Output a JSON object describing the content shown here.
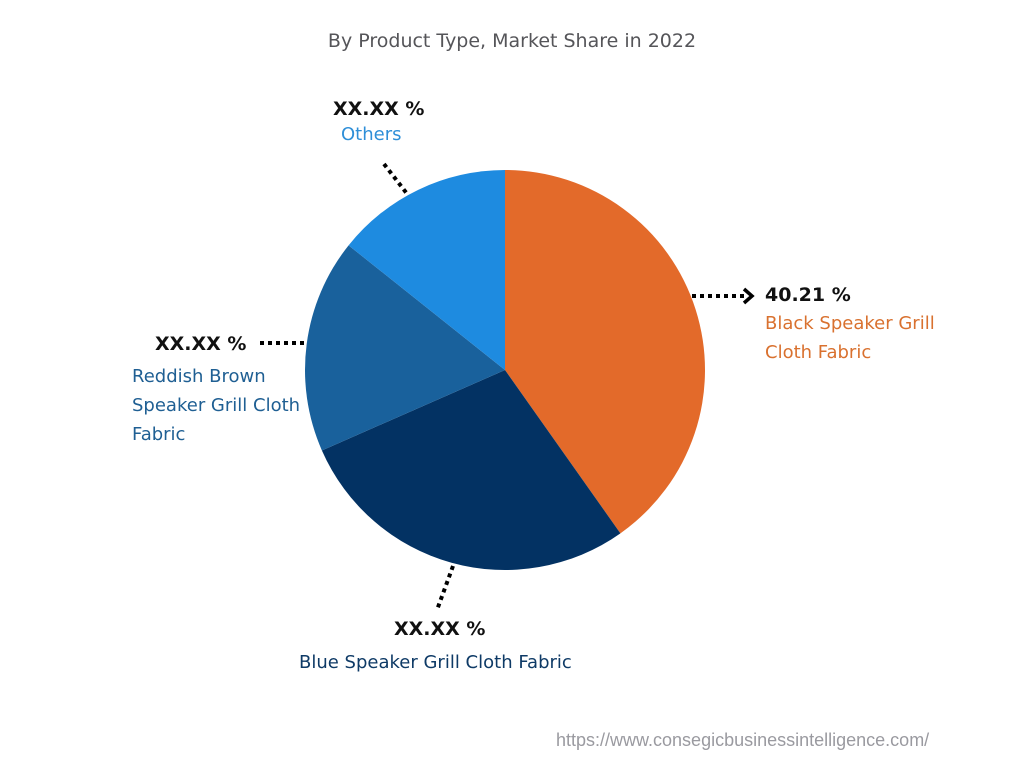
{
  "title": "By Product Type, Market Share in 2022",
  "source_url": "https://www.consegicbusinessintelligence.com/",
  "chart_data": {
    "type": "pie",
    "title": "By Product Type, Market Share in 2022",
    "start_angle": "12 o'clock, clockwise",
    "slices": [
      {
        "label": "Black Speaker Grill Cloth Fabric",
        "value": 40.21,
        "display": "40.21 %",
        "color": "#E36A2A"
      },
      {
        "label": "Blue Speaker Grill Cloth Fabric",
        "value": 28.2,
        "display": "XX.XX %",
        "color": "#033263"
      },
      {
        "label": "Reddish Brown Speaker Grill Cloth Fabric",
        "value": 17.3,
        "display": "XX.XX %",
        "color": "#19619C"
      },
      {
        "label": "Others",
        "value": 14.29,
        "display": "XX.XX %",
        "color": "#1E8BE0"
      }
    ]
  },
  "labels": {
    "black": {
      "pct": "40.21 %",
      "line1": "Black Speaker Grill",
      "line2": "Cloth Fabric"
    },
    "blue": {
      "pct": "XX.XX %",
      "line1": "Blue Speaker Grill Cloth Fabric"
    },
    "reddish": {
      "pct": "XX.XX %",
      "line1": "Reddish Brown",
      "line2": "Speaker Grill Cloth",
      "line3": "Fabric"
    },
    "others": {
      "pct": "XX.XX %",
      "line1": "Others"
    }
  }
}
